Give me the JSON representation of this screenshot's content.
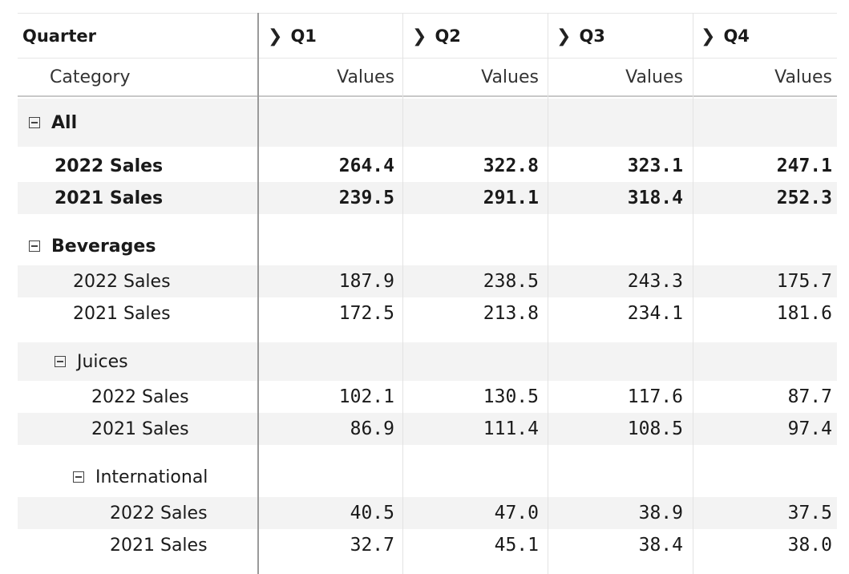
{
  "header": {
    "row_label": "Quarter",
    "column_label": "Category",
    "quarters": [
      "Q1",
      "Q2",
      "Q3",
      "Q4"
    ],
    "value_label": "Values",
    "chevron": "chevron-right-icon"
  },
  "colors": {
    "band": "#f3f3f3",
    "divider": "#9a9a9a"
  },
  "rows": [
    {
      "kind": "group",
      "label": "All",
      "bold": true,
      "indent": 0,
      "band": true
    },
    {
      "kind": "data",
      "label": "2022 Sales",
      "bold": true,
      "indent": 1,
      "band": false,
      "values": [
        "264.4",
        "322.8",
        "323.1",
        "247.1"
      ]
    },
    {
      "kind": "data",
      "label": "2021 Sales",
      "bold": true,
      "indent": 1,
      "band": true,
      "values": [
        "239.5",
        "291.1",
        "318.4",
        "252.3"
      ]
    },
    {
      "kind": "group",
      "label": "Beverages",
      "bold": true,
      "indent": 0,
      "band": false
    },
    {
      "kind": "data",
      "label": "2022 Sales",
      "bold": false,
      "indent": 2,
      "band": true,
      "values": [
        "187.9",
        "238.5",
        "243.3",
        "175.7"
      ]
    },
    {
      "kind": "data",
      "label": "2021 Sales",
      "bold": false,
      "indent": 2,
      "band": false,
      "values": [
        "172.5",
        "213.8",
        "234.1",
        "181.6"
      ]
    },
    {
      "kind": "group",
      "label": "Juices",
      "bold": false,
      "indent": 1,
      "band": true
    },
    {
      "kind": "data",
      "label": "2022 Sales",
      "bold": false,
      "indent": 3,
      "band": false,
      "values": [
        "102.1",
        "130.5",
        "117.6",
        "87.7"
      ]
    },
    {
      "kind": "data",
      "label": "2021 Sales",
      "bold": false,
      "indent": 3,
      "band": true,
      "values": [
        "86.9",
        "111.4",
        "108.5",
        "97.4"
      ]
    },
    {
      "kind": "group",
      "label": "International",
      "bold": false,
      "indent": 2,
      "band": false
    },
    {
      "kind": "data",
      "label": "2022 Sales",
      "bold": false,
      "indent": 4,
      "band": true,
      "values": [
        "40.5",
        "47.0",
        "38.9",
        "37.5"
      ]
    },
    {
      "kind": "data",
      "label": "2021 Sales",
      "bold": false,
      "indent": 4,
      "band": false,
      "values": [
        "32.7",
        "45.1",
        "38.4",
        "38.0"
      ]
    }
  ]
}
